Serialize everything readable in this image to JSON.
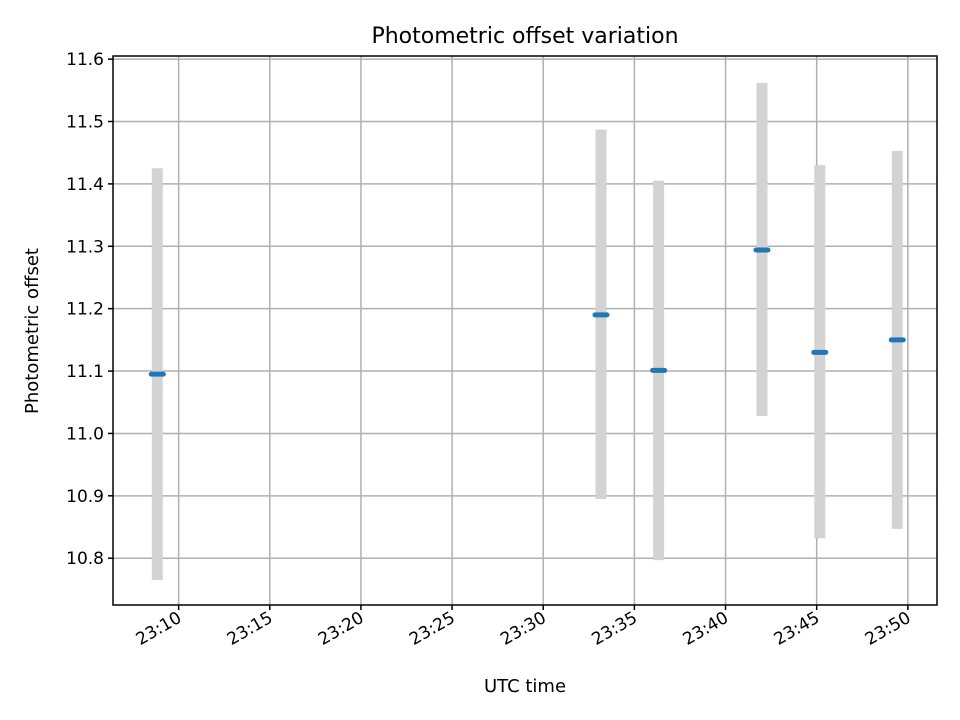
{
  "chart_data": {
    "type": "scatter",
    "title": "Photometric offset variation",
    "xlabel": "UTC time",
    "ylabel": "Photometric offset",
    "x_tick_labels": [
      "23:10",
      "23:15",
      "23:20",
      "23:25",
      "23:30",
      "23:35",
      "23:40",
      "23:45",
      "23:50"
    ],
    "x_tick_minutes": [
      10,
      15,
      20,
      25,
      30,
      35,
      40,
      45,
      50
    ],
    "xlim_minutes": [
      6.4,
      51.6
    ],
    "y_ticks": [
      10.8,
      10.9,
      11.0,
      11.1,
      11.2,
      11.3,
      11.4,
      11.5,
      11.6
    ],
    "y_tick_labels": [
      "10.8",
      "10.9",
      "11.0",
      "11.1",
      "11.2",
      "11.3",
      "11.4",
      "11.5",
      "11.6"
    ],
    "ylim": [
      10.725,
      11.605
    ],
    "grid": true,
    "points": [
      {
        "time": "23:08:50",
        "minute": 8.83,
        "y": 11.095,
        "err_low": 10.765,
        "err_high": 11.425
      },
      {
        "time": "23:33:10",
        "minute": 33.17,
        "y": 11.19,
        "err_low": 10.895,
        "err_high": 11.487
      },
      {
        "time": "23:36:20",
        "minute": 36.33,
        "y": 11.101,
        "err_low": 10.797,
        "err_high": 11.405
      },
      {
        "time": "23:42:00",
        "minute": 42.0,
        "y": 11.294,
        "err_low": 11.028,
        "err_high": 11.562
      },
      {
        "time": "23:45:10",
        "minute": 45.17,
        "y": 11.13,
        "err_low": 10.832,
        "err_high": 11.43
      },
      {
        "time": "23:49:25",
        "minute": 49.42,
        "y": 11.15,
        "err_low": 10.847,
        "err_high": 11.453
      }
    ],
    "marker_color": "#1f77b4",
    "errorbar_color": "#d3d3d3"
  }
}
